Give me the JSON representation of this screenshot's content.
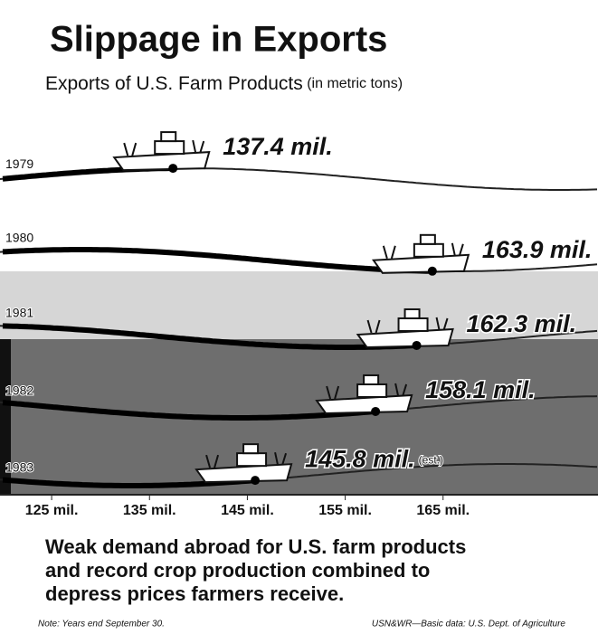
{
  "chart_data": {
    "type": "pictogram",
    "title": "Slippage in Exports",
    "subtitle": "Exports of U.S. Farm Products",
    "subtitle_note": "(in metric tons)",
    "categories": [
      "1979",
      "1980",
      "1981",
      "1982",
      "1983"
    ],
    "values": [
      137.4,
      163.9,
      162.3,
      158.1,
      145.8
    ],
    "value_labels": [
      "137.4 mil.",
      "163.9 mil.",
      "162.3 mil.",
      "158.1 mil.",
      "145.8 mil."
    ],
    "annotation": "(est.)",
    "xlim": [
      120,
      180
    ],
    "xticks": [
      {
        "value": 125,
        "label": "125 mil."
      },
      {
        "value": 135,
        "label": "135 mil."
      },
      {
        "value": 145,
        "label": "145 mil."
      },
      {
        "value": 155,
        "label": "155 mil."
      },
      {
        "value": 165,
        "label": "165 mil."
      }
    ],
    "caption": [
      "Weak demand abroad for U.S. farm products",
      "and record crop production combined to",
      "depress prices farmers receive."
    ],
    "note": "Note: Years end September 30.",
    "source": "USN&WR—Basic data: U.S. Dept. of Agriculture"
  }
}
